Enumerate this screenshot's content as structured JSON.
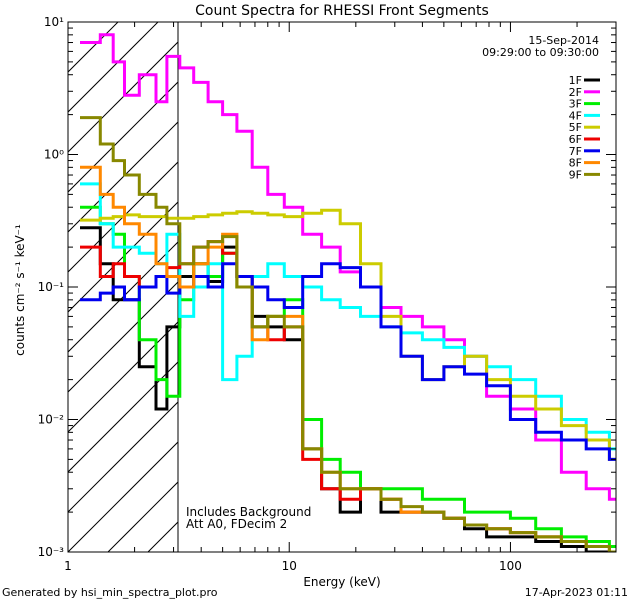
{
  "chart_data": {
    "type": "line",
    "title": "Count Spectra for RHESSI Front Segments",
    "xlabel": "Energy (keV)",
    "ylabel": "counts cm⁻² s⁻¹ keV⁻¹",
    "xscale": "log",
    "yscale": "log",
    "xlim": [
      1,
      300
    ],
    "ylim": [
      0.001,
      10
    ],
    "grid": false,
    "legend_position": "top-right",
    "x_ticks": [
      {
        "value": 1,
        "label": "1"
      },
      {
        "value": 10,
        "label": "10"
      },
      {
        "value": 100,
        "label": "100"
      }
    ],
    "y_ticks": [
      {
        "value": 0.001,
        "label": "10⁻³"
      },
      {
        "value": 0.01,
        "label": "10⁻²"
      },
      {
        "value": 0.1,
        "label": "10⁻¹"
      },
      {
        "value": 1,
        "label": "10⁰"
      },
      {
        "value": 10,
        "label": "10¹"
      }
    ],
    "date": "15-Sep-2014",
    "time_range": "09:29:00 to 09:30:00",
    "annotations": [
      "Includes Background",
      "Att A0, FDecim 2"
    ],
    "shaded_region_x": [
      1,
      3
    ],
    "footer_left": "Generated by hsi_min_spectra_plot.pro",
    "footer_right": "17-Apr-2023 01:11",
    "series": [
      {
        "name": "1F",
        "color": "#000000",
        "x": [
          1.2,
          1.4,
          1.6,
          1.8,
          2.1,
          2.5,
          2.8,
          3.2,
          3.7,
          4.3,
          5.0,
          5.8,
          6.8,
          8.0,
          9.5,
          11.5,
          14,
          17,
          21,
          26,
          32,
          40,
          50,
          62,
          78,
          100,
          130,
          170,
          220,
          280
        ],
        "y": [
          0.28,
          0.15,
          0.08,
          0.08,
          0.025,
          0.012,
          0.05,
          0.12,
          0.15,
          0.11,
          0.2,
          0.12,
          0.06,
          0.05,
          0.04,
          0.006,
          0.003,
          0.002,
          0.003,
          0.002,
          0.002,
          0.002,
          0.0018,
          0.0015,
          0.0013,
          0.0013,
          0.0012,
          0.0011,
          0.001,
          0.001
        ]
      },
      {
        "name": "2F",
        "color": "#ff00ff",
        "x": [
          1.2,
          1.4,
          1.6,
          1.8,
          2.1,
          2.5,
          2.8,
          3.2,
          3.7,
          4.3,
          5.0,
          5.8,
          6.8,
          8.0,
          9.5,
          11.5,
          14,
          17,
          21,
          26,
          32,
          40,
          50,
          62,
          78,
          100,
          130,
          170,
          220,
          280
        ],
        "y": [
          7,
          8,
          5,
          2.8,
          4,
          2.5,
          5.5,
          4.5,
          3.5,
          2.5,
          2.0,
          1.5,
          0.8,
          0.5,
          0.4,
          0.25,
          0.2,
          0.13,
          0.1,
          0.07,
          0.06,
          0.05,
          0.04,
          0.03,
          0.015,
          0.012,
          0.007,
          0.004,
          0.003,
          0.0025
        ]
      },
      {
        "name": "3F",
        "color": "#00ee00",
        "x": [
          1.2,
          1.4,
          1.6,
          1.8,
          2.1,
          2.5,
          2.8,
          3.2,
          3.7,
          4.3,
          5.0,
          5.8,
          6.8,
          8.0,
          9.5,
          11.5,
          14,
          17,
          21,
          26,
          32,
          40,
          50,
          62,
          78,
          100,
          130,
          170,
          220,
          280
        ],
        "y": [
          0.4,
          0.3,
          0.25,
          0.12,
          0.04,
          0.02,
          0.015,
          0.08,
          0.15,
          0.12,
          0.18,
          0.1,
          0.05,
          0.06,
          0.08,
          0.01,
          0.005,
          0.004,
          0.003,
          0.003,
          0.003,
          0.0025,
          0.0025,
          0.002,
          0.002,
          0.0018,
          0.0015,
          0.0013,
          0.0012,
          0.0011
        ]
      },
      {
        "name": "4F",
        "color": "#00ffff",
        "x": [
          1.2,
          1.4,
          1.6,
          1.8,
          2.1,
          2.5,
          2.8,
          3.2,
          3.7,
          4.3,
          5.0,
          5.8,
          6.8,
          8.0,
          9.5,
          11.5,
          14,
          17,
          21,
          26,
          32,
          40,
          50,
          62,
          78,
          100,
          130,
          170,
          220,
          280
        ],
        "y": [
          0.6,
          0.3,
          0.2,
          0.2,
          0.18,
          0.15,
          0.25,
          0.06,
          0.1,
          0.15,
          0.02,
          0.03,
          0.12,
          0.15,
          0.12,
          0.1,
          0.08,
          0.07,
          0.06,
          0.05,
          0.045,
          0.04,
          0.035,
          0.03,
          0.025,
          0.02,
          0.015,
          0.01,
          0.008,
          0.006
        ]
      },
      {
        "name": "5F",
        "color": "#cccc00",
        "x": [
          1.2,
          1.4,
          1.6,
          1.8,
          2.1,
          2.5,
          2.8,
          3.2,
          3.7,
          4.3,
          5.0,
          5.8,
          6.8,
          8.0,
          9.5,
          11.5,
          14,
          17,
          21,
          26,
          32,
          40,
          50,
          62,
          78,
          100,
          130,
          170,
          220,
          280
        ],
        "y": [
          0.32,
          0.33,
          0.34,
          0.35,
          0.34,
          0.34,
          0.33,
          0.33,
          0.34,
          0.35,
          0.36,
          0.37,
          0.36,
          0.35,
          0.34,
          0.36,
          0.38,
          0.3,
          0.15,
          0.06,
          0.03,
          0.02,
          0.025,
          0.03,
          0.02,
          0.015,
          0.012,
          0.009,
          0.007,
          0.005
        ]
      },
      {
        "name": "6F",
        "color": "#ee0000",
        "x": [
          1.2,
          1.4,
          1.6,
          1.8,
          2.1,
          2.5,
          2.8,
          3.2,
          3.7,
          4.3,
          5.0,
          5.8,
          6.8,
          8.0,
          9.5,
          11.5,
          14,
          17,
          21,
          26,
          32,
          40,
          50,
          62,
          78,
          100,
          130,
          170,
          220,
          280
        ],
        "y": [
          0.2,
          0.12,
          0.15,
          0.12,
          0.1,
          0.12,
          0.14,
          0.15,
          0.2,
          0.22,
          0.18,
          0.12,
          0.05,
          0.04,
          0.05,
          0.005,
          0.003,
          0.0025,
          0.003,
          0.0025,
          0.002,
          0.002,
          0.0018,
          0.0016,
          0.0015,
          0.0014,
          0.0013,
          0.0012,
          0.0011,
          0.001
        ]
      },
      {
        "name": "7F",
        "color": "#0000ee",
        "x": [
          1.2,
          1.4,
          1.6,
          1.8,
          2.1,
          2.5,
          2.8,
          3.2,
          3.7,
          4.3,
          5.0,
          5.8,
          6.8,
          8.0,
          9.5,
          11.5,
          14,
          17,
          21,
          26,
          32,
          40,
          50,
          62,
          78,
          100,
          130,
          170,
          220,
          280
        ],
        "y": [
          0.08,
          0.09,
          0.1,
          0.08,
          0.1,
          0.12,
          0.09,
          0.1,
          0.12,
          0.1,
          0.15,
          0.12,
          0.1,
          0.08,
          0.07,
          0.12,
          0.15,
          0.14,
          0.1,
          0.05,
          0.03,
          0.02,
          0.025,
          0.022,
          0.018,
          0.01,
          0.008,
          0.007,
          0.006,
          0.005
        ]
      },
      {
        "name": "8F",
        "color": "#ff8800",
        "x": [
          1.2,
          1.4,
          1.6,
          1.8,
          2.1,
          2.5,
          2.8,
          3.2,
          3.7,
          4.3,
          5.0,
          5.8,
          6.8,
          8.0,
          9.5,
          11.5,
          14,
          17,
          21,
          26,
          32,
          40,
          50,
          62,
          78,
          100,
          130,
          170,
          220,
          280
        ],
        "y": [
          0.8,
          0.5,
          0.4,
          0.3,
          0.25,
          0.15,
          0.12,
          0.1,
          0.15,
          0.2,
          0.25,
          0.1,
          0.04,
          0.06,
          0.06,
          0.006,
          0.004,
          0.003,
          0.003,
          0.0025,
          0.002,
          0.002,
          0.0018,
          0.0016,
          0.0015,
          0.0014,
          0.0013,
          0.0012,
          0.0011,
          0.001
        ]
      },
      {
        "name": "9F",
        "color": "#888800",
        "x": [
          1.2,
          1.4,
          1.6,
          1.8,
          2.1,
          2.5,
          2.8,
          3.2,
          3.7,
          4.3,
          5.0,
          5.8,
          6.8,
          8.0,
          9.5,
          11.5,
          14,
          17,
          21,
          26,
          32,
          40,
          50,
          62,
          78,
          100,
          130,
          170,
          220,
          280
        ],
        "y": [
          1.9,
          1.2,
          0.9,
          0.7,
          0.5,
          0.4,
          0.3,
          0.15,
          0.2,
          0.22,
          0.24,
          0.1,
          0.05,
          0.06,
          0.05,
          0.006,
          0.004,
          0.003,
          0.003,
          0.0025,
          0.0022,
          0.002,
          0.0018,
          0.0016,
          0.0015,
          0.0014,
          0.0013,
          0.0012,
          0.0011,
          0.001
        ]
      }
    ]
  }
}
